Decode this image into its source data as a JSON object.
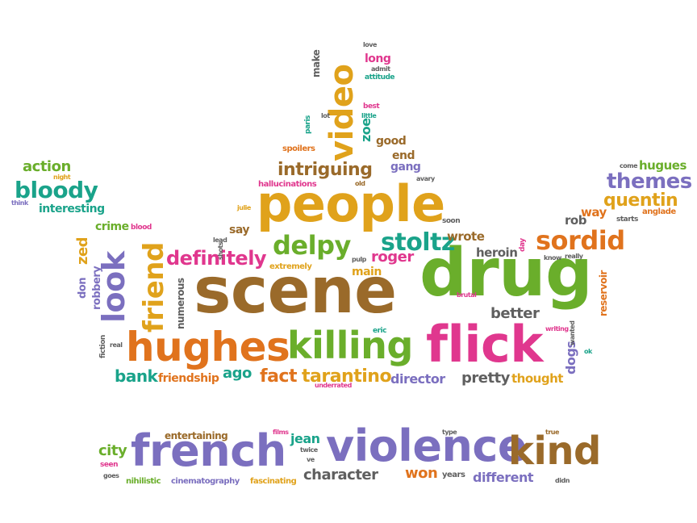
{
  "words": {
    "scene": "scene",
    "drug": "drug",
    "people": "people",
    "flick": "flick",
    "hughes": "hughes",
    "killing": "killing",
    "video": "video",
    "french": "french",
    "violence": "violence",
    "kind": "kind",
    "look": "look",
    "friend": "friend",
    "sordid": "sordid",
    "delpy": "delpy",
    "stoltz": "stoltz",
    "definitely": "definitely",
    "intriguing": "intriguing",
    "themes": "themes",
    "quentin": "quentin",
    "bloody": "bloody",
    "action": "action",
    "interesting": "interesting",
    "crime": "crime",
    "blood": "blood",
    "night": "night",
    "think": "think",
    "zed": "zed",
    "don": "don",
    "robbery": "robbery",
    "fiction": "fiction",
    "real": "real",
    "bank": "bank",
    "friendship": "friendship",
    "ago": "ago",
    "fact": "fact",
    "tarantino": "tarantino",
    "director": "director",
    "pretty": "pretty",
    "thought": "thought",
    "better": "better",
    "dogs": "dogs",
    "reservoir": "reservoir",
    "roger": "roger",
    "main": "main",
    "wrote": "wrote",
    "heroin": "heroin",
    "rob": "rob",
    "way": "way",
    "hugues": "hugues",
    "come": "come",
    "anglade": "anglade",
    "starts": "starts",
    "numerous": "numerous",
    "extremely": "extremely",
    "say": "say",
    "lead": "lead",
    "shots": "shots",
    "julie": "julie",
    "hallucinations": "hallucinations",
    "old": "old",
    "gang": "gang",
    "end": "end",
    "avary": "avary",
    "good": "good",
    "zoe": "zoe",
    "spoilers": "spoilers",
    "paris": "paris",
    "lot": "lot",
    "little": "little",
    "best": "best",
    "make": "make",
    "long": "long",
    "admit": "admit",
    "attitude": "attitude",
    "love": "love",
    "soon": "soon",
    "pulp": "pulp",
    "brutal": "brutal",
    "eric": "eric",
    "day": "day",
    "know": "know",
    "really": "really",
    "writing": "writing",
    "wanted": "wanted",
    "ok": "ok",
    "underrated": "underrated",
    "city": "city",
    "seen": "seen",
    "goes": "goes",
    "nihilistic": "nihilistic",
    "cinematography": "cinematography",
    "entertaining": "entertaining",
    "fascinating": "fascinating",
    "films": "films",
    "jean": "jean",
    "twice": "twice",
    "ve": "ve",
    "character": "character",
    "won": "won",
    "type": "type",
    "years": "years",
    "different": "different",
    "true": "true",
    "didn": "didn"
  },
  "colors": {
    "orange": "#e0731d",
    "gold": "#e0a21b",
    "green": "#6aae2b",
    "teal": "#1aa38a",
    "purple": "#7b6fbf",
    "pink": "#e0378e",
    "brown": "#9a6a2a",
    "gray": "#5f5f5f"
  }
}
